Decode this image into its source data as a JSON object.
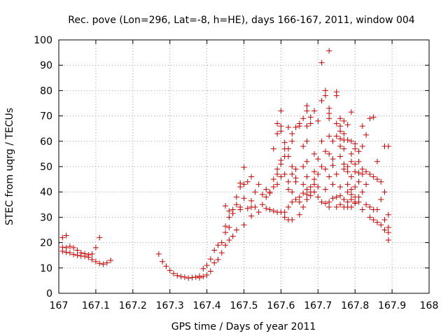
{
  "chart_data": {
    "type": "scatter",
    "title": "Rec. pove (Lon=296, Lat=-8, h=HE), days 166-167, 2011, window 004",
    "xlabel": "GPS time / Days of year 2011",
    "ylabel": "STEC from uqrg / TECUs",
    "xlim": [
      167,
      168
    ],
    "ylim": [
      0,
      100
    ],
    "xticks": [
      "167",
      "167.1",
      "167.2",
      "167.3",
      "167.4",
      "167.5",
      "167.6",
      "167.7",
      "167.8",
      "167.9",
      "168"
    ],
    "yticks": [
      "0",
      "10",
      "20",
      "30",
      "40",
      "50",
      "60",
      "70",
      "80",
      "90",
      "100"
    ],
    "grid": true,
    "marker": "+",
    "marker_color": "#cc0000",
    "series": [
      {
        "points": [
          [
            167.01,
            22.0
          ],
          [
            167.01,
            18.2
          ],
          [
            167.01,
            16.6
          ],
          [
            167.02,
            22.8
          ],
          [
            167.02,
            18.0
          ],
          [
            167.02,
            16.2
          ],
          [
            167.03,
            18.5
          ],
          [
            167.03,
            16.0
          ],
          [
            167.04,
            18.0
          ],
          [
            167.04,
            15.3
          ],
          [
            167.05,
            17.0
          ],
          [
            167.05,
            15.0
          ],
          [
            167.06,
            16.0
          ],
          [
            167.06,
            14.7
          ],
          [
            167.07,
            15.6
          ],
          [
            167.07,
            14.6
          ],
          [
            167.08,
            15.2
          ],
          [
            167.08,
            14.2
          ],
          [
            167.09,
            15.5
          ],
          [
            167.09,
            13.3
          ],
          [
            167.1,
            18.0
          ],
          [
            167.1,
            12.5
          ],
          [
            167.11,
            22.0
          ],
          [
            167.11,
            11.8
          ],
          [
            167.12,
            11.5
          ],
          [
            167.13,
            12.0
          ],
          [
            167.14,
            13.0
          ],
          [
            167.27,
            15.5
          ],
          [
            167.28,
            12.5
          ],
          [
            167.29,
            10.7
          ],
          [
            167.3,
            9.0
          ],
          [
            167.31,
            7.8
          ],
          [
            167.32,
            7.0
          ],
          [
            167.33,
            6.6
          ],
          [
            167.34,
            6.4
          ],
          [
            167.35,
            6.0
          ],
          [
            167.36,
            6.2
          ],
          [
            167.37,
            6.4
          ],
          [
            167.38,
            6.8
          ],
          [
            167.38,
            6.1
          ],
          [
            167.39,
            9.7
          ],
          [
            167.39,
            6.6
          ],
          [
            167.4,
            11.0
          ],
          [
            167.4,
            7.2
          ],
          [
            167.41,
            13.5
          ],
          [
            167.41,
            8.7
          ],
          [
            167.42,
            17.0
          ],
          [
            167.42,
            12.0
          ],
          [
            167.43,
            19.0
          ],
          [
            167.43,
            13.3
          ],
          [
            167.44,
            20.0
          ],
          [
            167.44,
            16.0
          ],
          [
            167.45,
            34.5
          ],
          [
            167.45,
            26.5
          ],
          [
            167.45,
            24.0
          ],
          [
            167.45,
            19.0
          ],
          [
            167.46,
            32.5
          ],
          [
            167.46,
            30.0
          ],
          [
            167.46,
            26.0
          ],
          [
            167.46,
            21.0
          ],
          [
            167.47,
            33.0
          ],
          [
            167.47,
            31.5
          ],
          [
            167.47,
            22.5
          ],
          [
            167.48,
            38.0
          ],
          [
            167.48,
            35.0
          ],
          [
            167.48,
            25.0
          ],
          [
            167.49,
            43.5
          ],
          [
            167.49,
            42.0
          ],
          [
            167.49,
            34.0
          ],
          [
            167.49,
            33.0
          ],
          [
            167.5,
            49.7
          ],
          [
            167.5,
            43.0
          ],
          [
            167.5,
            37.5
          ],
          [
            167.5,
            27.0
          ],
          [
            167.51,
            44.0
          ],
          [
            167.51,
            33.5
          ],
          [
            167.52,
            46.0
          ],
          [
            167.52,
            36.5
          ],
          [
            167.52,
            34.0
          ],
          [
            167.52,
            30.5
          ],
          [
            167.53,
            40.0
          ],
          [
            167.53,
            34.0
          ],
          [
            167.54,
            43.0
          ],
          [
            167.54,
            32.0
          ],
          [
            167.55,
            39.0
          ],
          [
            167.55,
            35.0
          ],
          [
            167.56,
            41.0
          ],
          [
            167.56,
            38.0
          ],
          [
            167.56,
            33.5
          ],
          [
            167.57,
            40.0
          ],
          [
            167.57,
            39.5
          ],
          [
            167.57,
            33.0
          ],
          [
            167.58,
            57.0
          ],
          [
            167.58,
            45.0
          ],
          [
            167.58,
            42.0
          ],
          [
            167.58,
            32.5
          ],
          [
            167.59,
            67.0
          ],
          [
            167.59,
            63.0
          ],
          [
            167.59,
            49.0
          ],
          [
            167.59,
            47.0
          ],
          [
            167.59,
            43.0
          ],
          [
            167.59,
            32.0
          ],
          [
            167.6,
            72.0
          ],
          [
            167.6,
            66.0
          ],
          [
            167.6,
            64.0
          ],
          [
            167.6,
            52.5
          ],
          [
            167.6,
            51.0
          ],
          [
            167.6,
            46.0
          ],
          [
            167.6,
            32.0
          ],
          [
            167.61,
            59.5
          ],
          [
            167.61,
            57.0
          ],
          [
            167.61,
            54.0
          ],
          [
            167.61,
            47.0
          ],
          [
            167.61,
            32.0
          ],
          [
            167.61,
            30.0
          ],
          [
            167.62,
            65.5
          ],
          [
            167.62,
            57.0
          ],
          [
            167.62,
            54.0
          ],
          [
            167.62,
            44.0
          ],
          [
            167.62,
            41.0
          ],
          [
            167.62,
            34.0
          ],
          [
            167.62,
            29.0
          ],
          [
            167.63,
            63.0
          ],
          [
            167.63,
            60.0
          ],
          [
            167.63,
            50.0
          ],
          [
            167.63,
            47.0
          ],
          [
            167.63,
            40.0
          ],
          [
            167.63,
            36.0
          ],
          [
            167.63,
            29.0
          ],
          [
            167.64,
            65.5
          ],
          [
            167.64,
            49.0
          ],
          [
            167.64,
            45.5
          ],
          [
            167.64,
            44.0
          ],
          [
            167.64,
            37.0
          ],
          [
            167.65,
            67.0
          ],
          [
            167.65,
            66.0
          ],
          [
            167.65,
            38.0
          ],
          [
            167.65,
            36.0
          ],
          [
            167.65,
            31.0
          ],
          [
            167.66,
            69.0
          ],
          [
            167.66,
            58.0
          ],
          [
            167.66,
            50.0
          ],
          [
            167.66,
            43.0
          ],
          [
            167.66,
            39.5
          ],
          [
            167.66,
            34.0
          ],
          [
            167.67,
            74.0
          ],
          [
            167.67,
            72.0
          ],
          [
            167.67,
            66.0
          ],
          [
            167.67,
            60.0
          ],
          [
            167.67,
            52.0
          ],
          [
            167.67,
            46.0
          ],
          [
            167.67,
            41.0
          ],
          [
            167.67,
            39.0
          ],
          [
            167.67,
            37.0
          ],
          [
            167.68,
            69.5
          ],
          [
            167.68,
            67.0
          ],
          [
            167.68,
            42.0
          ],
          [
            167.68,
            40.0
          ],
          [
            167.68,
            38.5
          ],
          [
            167.69,
            72.0
          ],
          [
            167.69,
            55.0
          ],
          [
            167.69,
            48.0
          ],
          [
            167.69,
            45.0
          ],
          [
            167.69,
            43.0
          ],
          [
            167.69,
            40.0
          ],
          [
            167.7,
            68.0
          ],
          [
            167.7,
            53.0
          ],
          [
            167.7,
            47.0
          ],
          [
            167.7,
            42.0
          ],
          [
            167.7,
            38.0
          ],
          [
            167.71,
            91.0
          ],
          [
            167.71,
            76.0
          ],
          [
            167.71,
            60.0
          ],
          [
            167.71,
            50.0
          ],
          [
            167.71,
            36.0
          ],
          [
            167.72,
            80.0
          ],
          [
            167.72,
            78.0
          ],
          [
            167.72,
            56.0
          ],
          [
            167.72,
            49.0
          ],
          [
            167.72,
            41.0
          ],
          [
            167.72,
            35.5
          ],
          [
            167.73,
            95.7
          ],
          [
            167.73,
            73.0
          ],
          [
            167.73,
            71.0
          ],
          [
            167.73,
            69.0
          ],
          [
            167.73,
            62.0
          ],
          [
            167.73,
            55.0
          ],
          [
            167.73,
            46.0
          ],
          [
            167.73,
            36.0
          ],
          [
            167.73,
            34.0
          ],
          [
            167.74,
            60.0
          ],
          [
            167.74,
            53.0
          ],
          [
            167.74,
            50.5
          ],
          [
            167.74,
            43.0
          ],
          [
            167.74,
            37.5
          ],
          [
            167.75,
            79.5
          ],
          [
            167.75,
            78.0
          ],
          [
            167.75,
            67.0
          ],
          [
            167.75,
            62.0
          ],
          [
            167.75,
            47.0
          ],
          [
            167.75,
            38.0
          ],
          [
            167.75,
            34.0
          ],
          [
            167.76,
            69.0
          ],
          [
            167.76,
            66.0
          ],
          [
            167.76,
            64.0
          ],
          [
            167.76,
            61.0
          ],
          [
            167.76,
            58.0
          ],
          [
            167.76,
            54.0
          ],
          [
            167.76,
            42.0
          ],
          [
            167.76,
            38.5
          ],
          [
            167.76,
            35.0
          ],
          [
            167.77,
            68.0
          ],
          [
            167.77,
            63.0
          ],
          [
            167.77,
            60.5
          ],
          [
            167.77,
            57.0
          ],
          [
            167.77,
            51.0
          ],
          [
            167.77,
            49.0
          ],
          [
            167.77,
            37.0
          ],
          [
            167.77,
            34.0
          ],
          [
            167.78,
            66.5
          ],
          [
            167.78,
            60.5
          ],
          [
            167.78,
            50.0
          ],
          [
            167.78,
            48.0
          ],
          [
            167.78,
            43.0
          ],
          [
            167.78,
            40.0
          ],
          [
            167.78,
            36.0
          ],
          [
            167.78,
            34.0
          ],
          [
            167.79,
            71.5
          ],
          [
            167.79,
            60.0
          ],
          [
            167.79,
            55.0
          ],
          [
            167.79,
            52.0
          ],
          [
            167.79,
            46.0
          ],
          [
            167.79,
            41.0
          ],
          [
            167.79,
            39.0
          ],
          [
            167.79,
            37.0
          ],
          [
            167.79,
            34.0
          ],
          [
            167.8,
            59.0
          ],
          [
            167.8,
            57.0
          ],
          [
            167.8,
            51.0
          ],
          [
            167.8,
            48.0
          ],
          [
            167.8,
            42.0
          ],
          [
            167.8,
            38.0
          ],
          [
            167.8,
            36.0
          ],
          [
            167.8,
            35.5
          ],
          [
            167.81,
            56.0
          ],
          [
            167.81,
            52.0
          ],
          [
            167.81,
            47.5
          ],
          [
            167.81,
            44.0
          ],
          [
            167.81,
            38.0
          ],
          [
            167.81,
            36.0
          ],
          [
            167.82,
            66.0
          ],
          [
            167.82,
            58.0
          ],
          [
            167.82,
            49.0
          ],
          [
            167.82,
            47.0
          ],
          [
            167.82,
            40.0
          ],
          [
            167.82,
            33.0
          ],
          [
            167.83,
            62.5
          ],
          [
            167.83,
            48.0
          ],
          [
            167.83,
            43.0
          ],
          [
            167.83,
            35.0
          ],
          [
            167.84,
            69.0
          ],
          [
            167.84,
            47.0
          ],
          [
            167.84,
            34.0
          ],
          [
            167.84,
            30.0
          ],
          [
            167.85,
            69.5
          ],
          [
            167.85,
            46.0
          ],
          [
            167.85,
            33.0
          ],
          [
            167.85,
            29.0
          ],
          [
            167.86,
            52.0
          ],
          [
            167.86,
            45.0
          ],
          [
            167.86,
            33.0
          ],
          [
            167.86,
            28.0
          ],
          [
            167.87,
            44.0
          ],
          [
            167.87,
            37.0
          ],
          [
            167.87,
            27.0
          ],
          [
            167.88,
            58.0
          ],
          [
            167.88,
            40.0
          ],
          [
            167.88,
            29.0
          ],
          [
            167.88,
            25.0
          ],
          [
            167.89,
            58.0
          ],
          [
            167.89,
            31.0
          ],
          [
            167.89,
            26.0
          ],
          [
            167.89,
            24.0
          ],
          [
            167.89,
            21.0
          ]
        ]
      }
    ]
  }
}
